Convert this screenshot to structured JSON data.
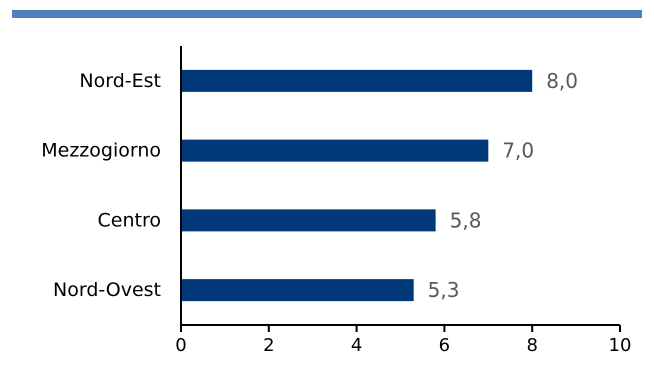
{
  "chart_data": {
    "type": "bar",
    "orientation": "horizontal",
    "categories": [
      "Nord-Est",
      "Mezzogiorno",
      "Centro",
      "Nord-Ovest"
    ],
    "values": [
      8.0,
      7.0,
      5.8,
      5.3
    ],
    "data_labels": [
      "8,0",
      "7,0",
      "5,8",
      "5,3"
    ],
    "xlim": [
      0,
      10
    ],
    "xticks": [
      0,
      2,
      4,
      6,
      8,
      10
    ],
    "xtick_labels": [
      "0",
      "2",
      "4",
      "6",
      "8",
      "10"
    ],
    "grid": false,
    "legend": "none",
    "bar_color": "#003878",
    "accent_color": "#4f81bd"
  }
}
